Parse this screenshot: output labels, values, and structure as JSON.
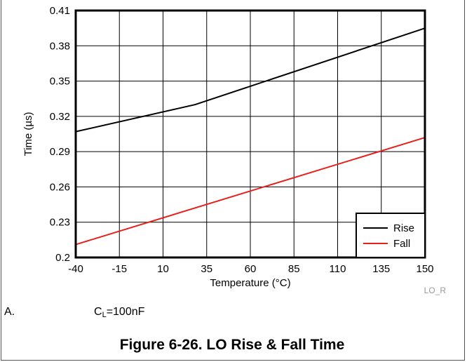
{
  "chart_data": {
    "type": "line",
    "xlabel": "Temperature (°C)",
    "ylabel": "Time (µs)",
    "xlim": [
      -40,
      150
    ],
    "ylim": [
      0.2,
      0.41
    ],
    "x_ticks": [
      -40,
      -15,
      10,
      35,
      60,
      85,
      110,
      135,
      150
    ],
    "x_tick_labels": [
      "-40",
      "-15",
      "10",
      "35",
      "60",
      "85",
      "110",
      "135",
      "150"
    ],
    "y_ticks": [
      0.2,
      0.23,
      0.26,
      0.29,
      0.32,
      0.35,
      0.38,
      0.41
    ],
    "y_tick_labels": [
      "0.2",
      "0.23",
      "0.26",
      "0.29",
      "0.32",
      "0.35",
      "0.38",
      "0.41"
    ],
    "grid": true,
    "legend_position": "bottom-right",
    "series": [
      {
        "name": "Rise",
        "color": "#000000",
        "x": [
          -40,
          25,
          150
        ],
        "y": [
          0.307,
          0.33,
          0.395
        ]
      },
      {
        "name": "Fall",
        "color": "#e8201c",
        "x": [
          -40,
          150
        ],
        "y": [
          0.211,
          0.302
        ]
      }
    ],
    "watermark": "LO_R"
  },
  "notes": {
    "letter": "A.",
    "condition_main": "C",
    "condition_sub": "L",
    "condition_value": "=100nF"
  },
  "caption": "Figure 6-26. LO Rise & Fall Time"
}
